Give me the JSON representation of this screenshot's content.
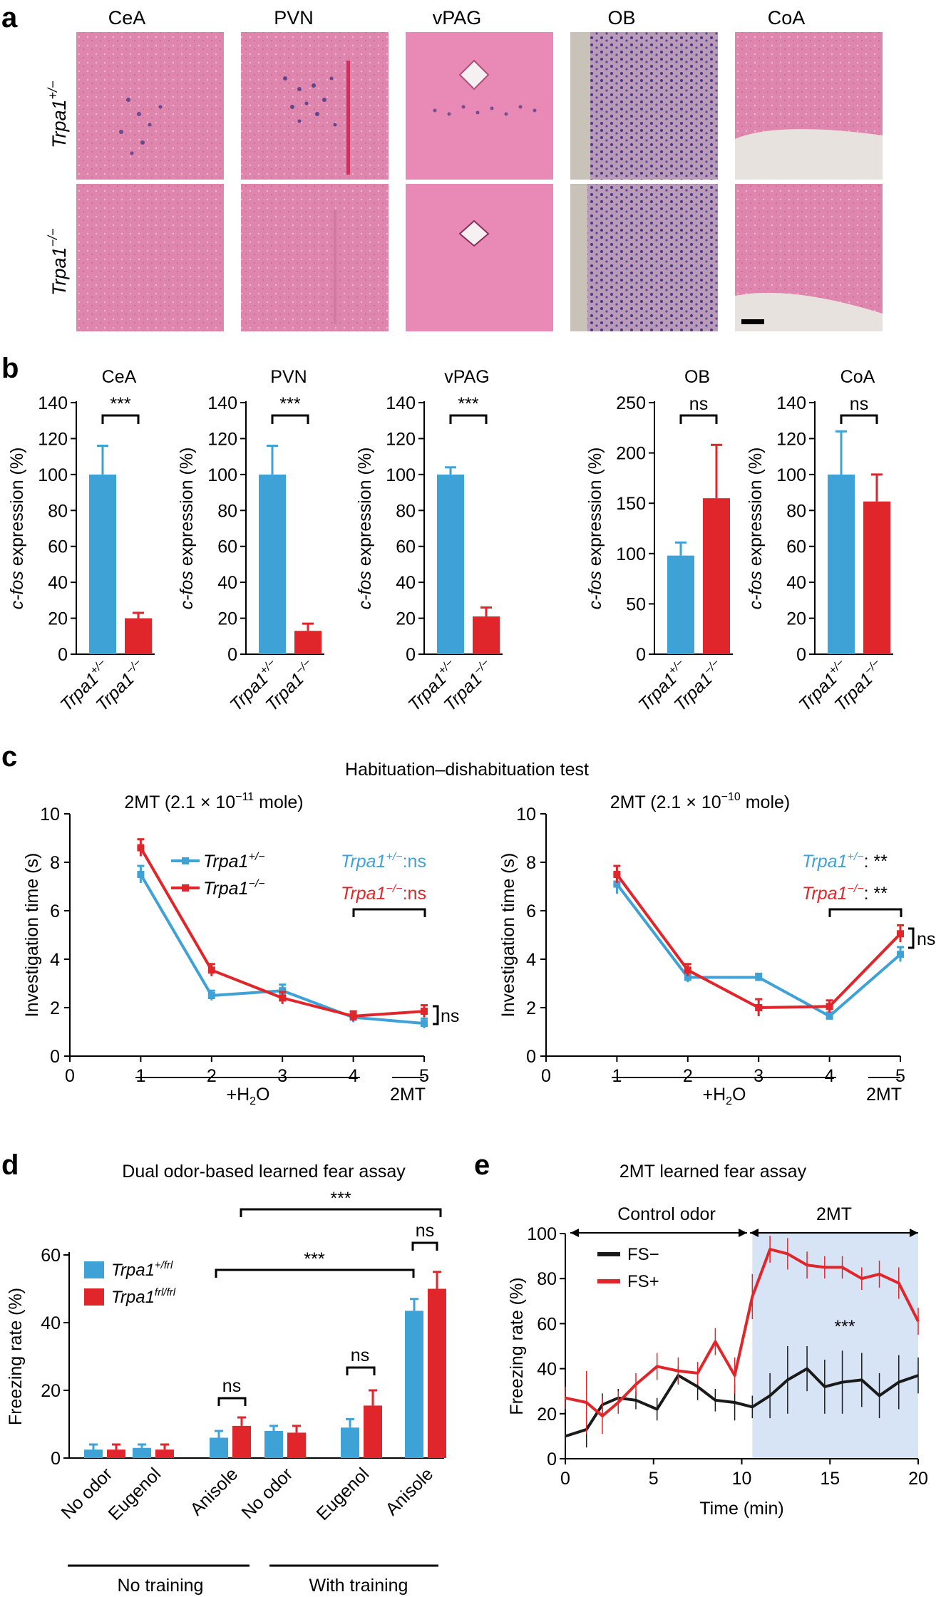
{
  "colors": {
    "het": "#3fa2d6",
    "ko": "#e0262b",
    "fs_minus": "#1a1a1a",
    "fs_plus": "#e0262b",
    "shade": "#d6e4f5",
    "tissue": "#d97aa3",
    "stain": "#4b3a8a"
  },
  "panel_a": {
    "label": "a",
    "columns": [
      "CeA",
      "PVN",
      "vPAG",
      "OB",
      "CoA"
    ],
    "rows": [
      {
        "gene": "Trpa1",
        "sup": "+/−"
      },
      {
        "gene": "Trpa1",
        "sup": "−/−"
      }
    ]
  },
  "panel_b": {
    "label": "b",
    "ylabel_italic": "c-fos",
    "ylabel_rest": " expression (%)",
    "ylabel_plain": "c-fos expression (%)",
    "xticks": [
      {
        "gene": "Trpa1",
        "sup": "+/−"
      },
      {
        "gene": "Trpa1",
        "sup": "−/−"
      }
    ]
  },
  "chart_data": [
    {
      "type": "bar",
      "title": "CeA",
      "categories": [
        "Trpa1+/−",
        "Trpa1−/−"
      ],
      "values": [
        100,
        20
      ],
      "errors": [
        16,
        3
      ],
      "ylim": [
        0,
        140
      ],
      "yticks": [
        0,
        20,
        40,
        60,
        80,
        100,
        120,
        140
      ],
      "ylabel": "c-fos expression (%)",
      "significance": "***"
    },
    {
      "type": "bar",
      "title": "PVN",
      "categories": [
        "Trpa1+/−",
        "Trpa1−/−"
      ],
      "values": [
        100,
        13
      ],
      "errors": [
        16,
        4
      ],
      "ylim": [
        0,
        140
      ],
      "yticks": [
        0,
        20,
        40,
        60,
        80,
        100,
        120,
        140
      ],
      "ylabel": "c-fos expression (%)",
      "significance": "***"
    },
    {
      "type": "bar",
      "title": "vPAG",
      "categories": [
        "Trpa1+/−",
        "Trpa1−/−"
      ],
      "values": [
        100,
        21
      ],
      "errors": [
        4,
        5
      ],
      "ylim": [
        0,
        140
      ],
      "yticks": [
        0,
        20,
        40,
        60,
        80,
        100,
        120,
        140
      ],
      "ylabel": "c-fos expression (%)",
      "significance": "***"
    },
    {
      "type": "bar",
      "title": "OB",
      "categories": [
        "Trpa1+/−",
        "Trpa1−/−"
      ],
      "values": [
        98,
        155
      ],
      "errors": [
        13,
        53
      ],
      "ylim": [
        0,
        250
      ],
      "yticks": [
        0,
        50,
        100,
        150,
        200,
        250
      ],
      "ylabel": "c-fos expression (%)",
      "significance": "ns"
    },
    {
      "type": "bar",
      "title": "CoA",
      "categories": [
        "Trpa1+/−",
        "Trpa1−/−"
      ],
      "values": [
        100,
        85
      ],
      "errors": [
        24,
        15
      ],
      "ylim": [
        0,
        140
      ],
      "yticks": [
        0,
        20,
        40,
        60,
        80,
        100,
        120,
        140
      ],
      "ylabel": "c-fos expression (%)",
      "significance": "ns"
    },
    {
      "type": "line",
      "title": "2MT (2.1 × 10⁻¹¹ mole)",
      "x": [
        1,
        2,
        3,
        4,
        5
      ],
      "series": [
        {
          "name": "Trpa1+/−",
          "values": [
            7.5,
            2.5,
            2.7,
            1.6,
            1.35
          ],
          "errors": [
            0.35,
            0.2,
            0.25,
            0.2,
            0.2
          ]
        },
        {
          "name": "Trpa1−/−",
          "values": [
            8.6,
            3.55,
            2.4,
            1.65,
            1.85
          ],
          "errors": [
            0.35,
            0.25,
            0.25,
            0.2,
            0.25
          ]
        }
      ],
      "xlim": [
        0,
        5
      ],
      "ylim": [
        0,
        10
      ],
      "xticks": [
        0,
        1,
        2,
        3,
        4,
        5
      ],
      "yticks": [
        0,
        2,
        4,
        6,
        8,
        10
      ],
      "ylabel": "Investigation time (s)"
    },
    {
      "type": "line",
      "title": "2MT (2.1 × 10⁻¹⁰ mole)",
      "x": [
        1,
        2,
        3,
        4,
        5
      ],
      "series": [
        {
          "name": "Trpa1+/−",
          "values": [
            7.1,
            3.25,
            3.25,
            1.65,
            4.2
          ],
          "errors": [
            0.4,
            0.2,
            0.15,
            0.15,
            0.3
          ]
        },
        {
          "name": "Trpa1−/−",
          "values": [
            7.5,
            3.55,
            2.0,
            2.05,
            5.05
          ],
          "errors": [
            0.35,
            0.25,
            0.35,
            0.25,
            0.35
          ]
        }
      ],
      "xlim": [
        0,
        5
      ],
      "ylim": [
        0,
        10
      ],
      "xticks": [
        0,
        1,
        2,
        3,
        4,
        5
      ],
      "yticks": [
        0,
        2,
        4,
        6,
        8,
        10
      ],
      "ylabel": "Investigation time (s)"
    },
    {
      "type": "bar",
      "title": "Dual odor-based learned fear assay",
      "categories": [
        "No odor",
        "Eugenol",
        "Anisole",
        "No odor",
        "Eugenol",
        "Anisole"
      ],
      "series": [
        {
          "name": "Trpa1+/frl",
          "values": [
            2.5,
            3,
            6,
            8,
            9,
            43.5
          ],
          "errors": [
            1.5,
            1,
            2,
            1.5,
            2.5,
            3.5
          ]
        },
        {
          "name": "Trpa1frl/frl",
          "values": [
            2.5,
            2.5,
            9.5,
            7.5,
            15.5,
            50
          ],
          "errors": [
            1.5,
            1.5,
            2.5,
            2,
            4.5,
            5
          ]
        }
      ],
      "ylim": [
        0,
        60
      ],
      "yticks": [
        0,
        20,
        40,
        60
      ],
      "ylabel": "Freezing rate (%)"
    },
    {
      "type": "line",
      "title": "2MT learned fear assay",
      "x": [
        0,
        1.2,
        2.1,
        3,
        4,
        5.2,
        6.4,
        7.5,
        8.5,
        9.6,
        10.6,
        11.6,
        12.6,
        13.7,
        14.7,
        15.7,
        16.8,
        17.8,
        18.9,
        20
      ],
      "series": [
        {
          "name": "FS−",
          "values": [
            10,
            13,
            24,
            27,
            26,
            22,
            37,
            32,
            26,
            25,
            23,
            28,
            35,
            40,
            32,
            34,
            35,
            28,
            34,
            37
          ],
          "errors": [
            4,
            8,
            5,
            4,
            4,
            5,
            4,
            6,
            5,
            8,
            5,
            10,
            15,
            10,
            12,
            14,
            12,
            10,
            12,
            8
          ]
        },
        {
          "name": "FS+",
          "values": [
            27,
            25,
            19,
            25,
            33,
            41,
            39,
            38,
            52,
            37,
            72,
            93,
            91,
            86,
            85,
            85,
            80,
            82,
            78,
            61
          ],
          "errors": [
            5,
            14,
            8,
            5,
            5,
            6,
            6,
            5,
            6,
            8,
            10,
            6,
            7,
            6,
            5,
            5,
            5,
            6,
            7,
            6
          ]
        }
      ],
      "xlim": [
        0,
        20
      ],
      "ylim": [
        0,
        100
      ],
      "xticks": [
        0,
        5,
        10,
        15,
        20
      ],
      "yticks": [
        0,
        20,
        40,
        60,
        80,
        100
      ],
      "xlabel": "Time (min)",
      "ylabel": "Freezing rate (%)",
      "shaded_range": [
        10.6,
        20
      ]
    }
  ],
  "panel_c": {
    "label": "c",
    "title": "Habituation–dishabituation test",
    "left_title_prefix": "2MT (2.1 × 10",
    "left_title_exp": "−11",
    "right_title_exp": "−10",
    "title_suffix": " mole)",
    "ylabel": "Investigation time (s)",
    "legend": [
      {
        "gene": "Trpa1",
        "sup": "+/−"
      },
      {
        "gene": "Trpa1",
        "sup": "−/−"
      }
    ],
    "left_stats": [
      {
        "gene": "Trpa1",
        "sup": "+/−",
        "result": ":ns"
      },
      {
        "gene": "Trpa1",
        "sup": "−/−",
        "result": ":ns"
      }
    ],
    "right_stats": [
      {
        "gene": "Trpa1",
        "sup": "+/−",
        "result": ": **"
      },
      {
        "gene": "Trpa1",
        "sup": "−/−",
        "result": ": **"
      }
    ],
    "bracket_ns": "ns",
    "h2o_base": "+H",
    "h2o_sub": "2",
    "h2o_tail": "O",
    "odor_label": "2MT"
  },
  "panel_d": {
    "label": "d",
    "title": "Dual odor-based learned fear assay",
    "ylabel": "Freezing rate (%)",
    "legend": [
      {
        "gene": "Trpa1",
        "sup": "+/frl"
      },
      {
        "gene": "Trpa1",
        "sup": "frl/frl"
      }
    ],
    "groups": [
      "No training",
      "With training"
    ],
    "sig": {
      "ns1": "ns",
      "ns2": "ns",
      "ns3": "ns",
      "star1": "***",
      "star2": "***"
    }
  },
  "panel_e": {
    "label": "e",
    "title": "2MT learned fear assay",
    "phase_control": "Control odor",
    "phase_odor": "2MT",
    "legend": [
      "FS−",
      "FS+"
    ],
    "sig": "***"
  }
}
